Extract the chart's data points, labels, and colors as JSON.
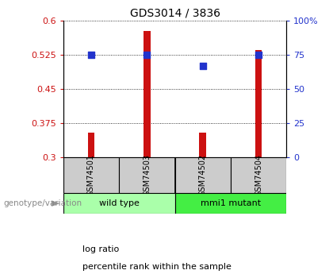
{
  "title": "GDS3014 / 3836",
  "samples": [
    "GSM74501",
    "GSM74503",
    "GSM74502",
    "GSM74504"
  ],
  "log_ratio": [
    0.355,
    0.577,
    0.355,
    0.535
  ],
  "percentile_rank": [
    75,
    75,
    67,
    75
  ],
  "bar_color": "#cc1111",
  "dot_color": "#2233cc",
  "ylim_left": [
    0.3,
    0.6
  ],
  "ylim_right": [
    0,
    100
  ],
  "yticks_left": [
    0.3,
    0.375,
    0.45,
    0.525,
    0.6
  ],
  "yticks_right": [
    0,
    25,
    50,
    75,
    100
  ],
  "ytick_labels_left": [
    "0.3",
    "0.375",
    "0.45",
    "0.525",
    "0.6"
  ],
  "ytick_labels_right": [
    "0",
    "25",
    "50",
    "75",
    "100%"
  ],
  "groups": [
    {
      "label": "wild type",
      "samples": [
        0,
        1
      ],
      "color": "#aaffaa"
    },
    {
      "label": "mmi1 mutant",
      "samples": [
        2,
        3
      ],
      "color": "#44ee44"
    }
  ],
  "genotype_label": "genotype/variation",
  "legend_items": [
    {
      "label": "log ratio",
      "color": "#cc1111"
    },
    {
      "label": "percentile rank within the sample",
      "color": "#2233cc"
    }
  ],
  "bg_color": "#ffffff",
  "plot_bg": "#ffffff",
  "sample_box_color": "#cccccc",
  "bar_width": 0.12,
  "dot_size": 35,
  "title_fontsize": 10,
  "tick_fontsize": 8,
  "label_fontsize": 8,
  "legend_fontsize": 8
}
